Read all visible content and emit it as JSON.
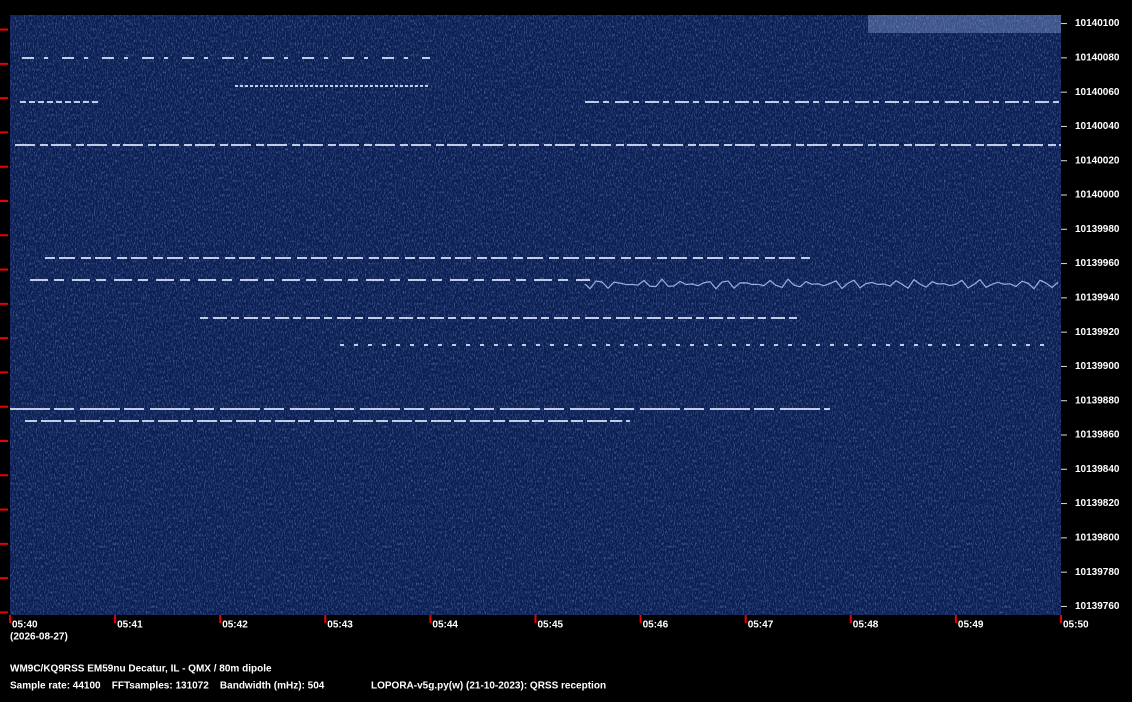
{
  "chart_data": {
    "type": "spectrogram",
    "xticks": [
      "05:40",
      "05:41",
      "05:42",
      "05:43",
      "05:44",
      "05:45",
      "05:46",
      "05:47",
      "05:48",
      "05:49",
      "05:50"
    ],
    "date": "(2026-08-27)",
    "ylim": [
      10139755,
      10140105
    ],
    "yticks": [
      10140100,
      10140080,
      10140060,
      10140040,
      10140020,
      10140000,
      10139980,
      10139960,
      10139940,
      10139920,
      10139900,
      10139880,
      10139860,
      10139840,
      10139820,
      10139800,
      10139780,
      10139760
    ],
    "station": "WM9C/KQ9RSS EM59nu Decatur, IL - QMX / 80m dipole",
    "settings": "Sample rate: 44100    FFTsamples: 131072    Bandwidth (mHz): 504",
    "software": "LOPORA-v5g.py(w) (21-10-2023): QRSS reception"
  }
}
